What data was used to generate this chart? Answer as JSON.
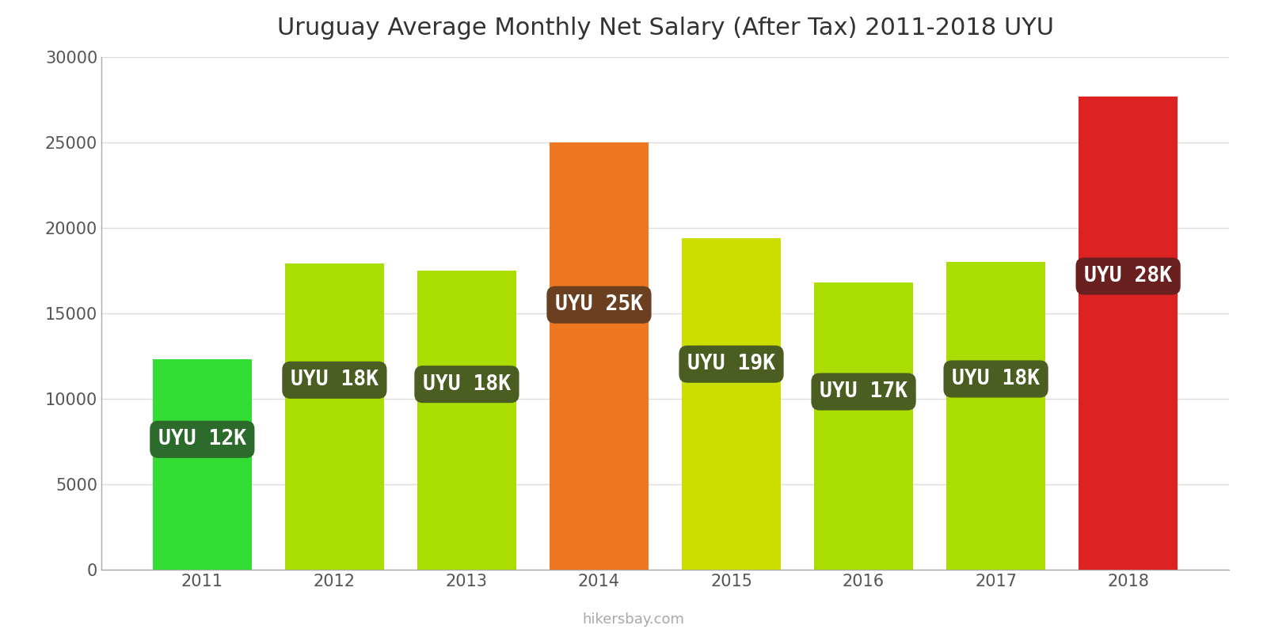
{
  "title": "Uruguay Average Monthly Net Salary (After Tax) 2011-2018 UYU",
  "years": [
    2011,
    2012,
    2013,
    2014,
    2015,
    2016,
    2017,
    2018
  ],
  "values": [
    12300,
    17900,
    17500,
    25000,
    19400,
    16800,
    18000,
    27700
  ],
  "bar_colors": [
    "#33dd33",
    "#aadd00",
    "#aadd00",
    "#ee7722",
    "#ccdd00",
    "#aadd00",
    "#aadd00",
    "#dd2222"
  ],
  "label_texts": [
    "UYU 12K",
    "UYU 18K",
    "UYU 18K",
    "UYU 25K",
    "UYU 19K",
    "UYU 17K",
    "UYU 18K",
    "UYU 28K"
  ],
  "label_box_colors": [
    "#2d6b2d",
    "#4a5e22",
    "#4a5e22",
    "#6b4020",
    "#4a5e22",
    "#4a5e22",
    "#4a5e22",
    "#6b2020"
  ],
  "ylim": [
    0,
    30000
  ],
  "yticks": [
    0,
    5000,
    10000,
    15000,
    20000,
    25000,
    30000
  ],
  "background_color": "#ffffff",
  "watermark": "hikersbay.com",
  "title_fontsize": 22,
  "axis_fontsize": 15,
  "label_fontsize": 19,
  "bar_width": 0.75
}
